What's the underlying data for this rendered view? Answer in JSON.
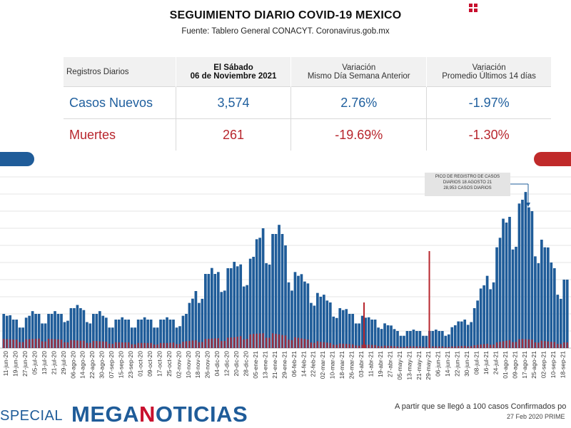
{
  "header": {
    "title": "SEGUIMIENTO DIARIO COVID-19 MEXICO",
    "source": "Fuente: Tablero General CONACYT. Coronavirus.gob.mx"
  },
  "table": {
    "col0": "Registros Diarios",
    "col1_line1": "El Sábado",
    "col1_line2": "06 de Noviembre 2021",
    "col2_line1": "Variación",
    "col2_line2": "Mismo Día Semana Anterior",
    "col3_line1": "Variación",
    "col3_line2": "Promedio Últimos 14 días",
    "rows": [
      {
        "label": "Casos Nuevos",
        "value": "3,574",
        "var_week": "2.76%",
        "var_14": "-1.97%"
      },
      {
        "label": "Muertes",
        "value": "261",
        "var_week": "-19.69%",
        "var_14": "-1.30%"
      }
    ]
  },
  "annotation": {
    "line1": "PICO DE REGISTRO DE CASOS",
    "line2": "DIARIOS 18 AGOSTO 21",
    "line3": "28,953 CASOS DIARIOS"
  },
  "footer": {
    "special": "SPECIAL",
    "brand_a": "MEGA",
    "brand_b": "N",
    "brand_c": "OTICIAS",
    "note_line1": "A partir que se llegó a 100 casos Confirmados po",
    "note_line2": "27 Feb 2020 PRIME"
  },
  "colors": {
    "cases": "#1f5c99",
    "deaths": "#b8262d"
  },
  "chart_data": {
    "type": "bar",
    "x_tick_labels": [
      "11-jun-20",
      "19-jun-20",
      "27-jun-20",
      "05-jul-20",
      "13-jul-20",
      "21-jul-20",
      "29-jul-20",
      "06-ago-20",
      "14-ago-20",
      "22-ago-20",
      "30-ago-20",
      "07-sep-20",
      "15-sep-20",
      "23-sep-20",
      "01-oct-20",
      "09-oct-20",
      "17-oct-20",
      "25-oct-20",
      "02-nov-20",
      "10-nov-20",
      "18-nov-20",
      "26-nov-20",
      "04-dic-20",
      "12-dic-20",
      "20-dic-20",
      "28-dic-20",
      "05-ene-21",
      "13-ene-21",
      "21-ene-21",
      "29-ene-21",
      "06-feb-21",
      "14-feb-21",
      "22-feb-21",
      "02-mar-21",
      "10-mar-21",
      "18-mar-21",
      "26-mar-21",
      "03-abr-21",
      "11-abr-21",
      "19-abr-21",
      "27-abr-21",
      "05-may-21",
      "13-may-21",
      "21-may-21",
      "29-may-21",
      "06-jun-21",
      "14-jun-21",
      "22-jun-21",
      "30-jun-21",
      "08-jul-21",
      "16-jul-21",
      "24-jul-21",
      "01-ago-21",
      "09-ago-21",
      "17-ago-21",
      "25-ago-21",
      "02-sep-21",
      "10-sep-21",
      "18-sep-21"
    ],
    "series": [
      {
        "values": [
          6,
          5,
          5,
          6,
          6,
          6,
          6,
          7,
          7,
          6,
          6,
          5,
          5,
          5,
          5,
          5,
          5,
          5,
          5,
          6,
          10,
          13,
          13,
          14,
          14,
          15,
          16,
          21,
          20,
          20,
          14,
          12,
          11,
          9,
          8,
          7,
          6,
          6,
          5,
          5,
          4,
          3,
          3,
          3,
          3,
          3,
          3,
          4,
          5,
          7,
          11,
          16,
          21,
          24,
          26,
          24,
          19,
          15,
          12
        ]
      },
      {
        "values": [
          1.6,
          1.5,
          1.5,
          1.6,
          1.7,
          1.6,
          1.5,
          1.4,
          1.3,
          1.3,
          1.2,
          1.1,
          1.0,
          1.0,
          0.9,
          0.9,
          0.9,
          0.9,
          1.0,
          1.2,
          1.4,
          1.6,
          1.7,
          1.8,
          1.9,
          2.2,
          2.5,
          2.6,
          2.6,
          2.3,
          2.0,
          1.7,
          1.4,
          1.1,
          0.9,
          0.8,
          0.7,
          0.6,
          0.6,
          0.5,
          0.4,
          0.3,
          0.3,
          0.3,
          0.3,
          0.3,
          0.3,
          0.3,
          0.4,
          0.5,
          0.7,
          0.9,
          1.2,
          1.5,
          1.6,
          1.5,
          1.3,
          1.1,
          1.0
        ]
      }
    ],
    "spikes": [
      {
        "x": "08-abr-21",
        "series": 1,
        "value": 8
      },
      {
        "x": "01-jun-21",
        "series": 1,
        "value": 17
      }
    ],
    "grid": true,
    "legend": "none"
  }
}
